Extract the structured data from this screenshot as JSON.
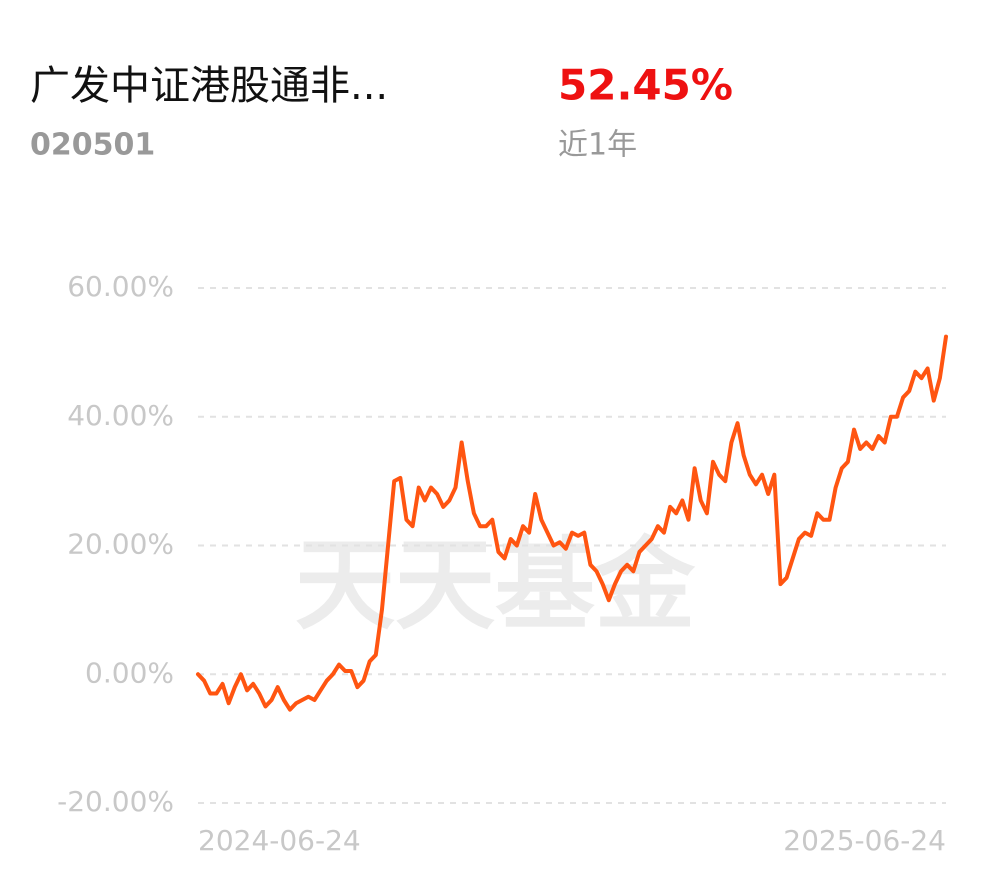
{
  "header": {
    "title": "广发中证港股通非...",
    "code": "020501",
    "return": "52.45%",
    "period": "近1年"
  },
  "watermark": "天天基金",
  "chart_data": {
    "type": "line",
    "categories": [
      "2024-06-24",
      null,
      null,
      null,
      null,
      null,
      null,
      null,
      null,
      null,
      null,
      null,
      null,
      null,
      null,
      null,
      null,
      null,
      null,
      null,
      null,
      null,
      null,
      null,
      null,
      null,
      null,
      null,
      null,
      null,
      null,
      null,
      null,
      null,
      null,
      null,
      null,
      null,
      null,
      null,
      null,
      null,
      null,
      null,
      null,
      null,
      null,
      null,
      null,
      null,
      null,
      null,
      null,
      null,
      null,
      null,
      null,
      null,
      null,
      null,
      null,
      null,
      null,
      null,
      null,
      null,
      null,
      null,
      null,
      null,
      null,
      null,
      null,
      null,
      null,
      null,
      null,
      null,
      null,
      null,
      null,
      null,
      null,
      null,
      null,
      null,
      null,
      null,
      null,
      null,
      null,
      null,
      null,
      null,
      null,
      null,
      null,
      null,
      null,
      null,
      null,
      null,
      null,
      null,
      null,
      null,
      null,
      null,
      null,
      null,
      null,
      null,
      null,
      null,
      null,
      null,
      null,
      null,
      null,
      null,
      null,
      null,
      "2025-06-24"
    ],
    "series": [
      {
        "color": "#ff5511",
        "values": [
          0,
          -1,
          -3,
          -3,
          -1.5,
          -4.5,
          -2,
          0,
          -2.5,
          -1.5,
          -3,
          -5,
          -4,
          -2,
          -4,
          -5.5,
          -4.5,
          -4,
          -3.5,
          -4,
          -2.5,
          -1,
          0,
          1.5,
          0.5,
          0.5,
          -2,
          -1,
          2,
          3,
          10,
          20,
          30,
          30.5,
          24,
          23,
          29,
          27,
          29,
          28,
          26,
          27,
          29,
          36,
          30,
          25,
          23,
          23,
          24,
          19,
          18,
          21,
          20,
          23,
          22,
          28,
          24,
          22,
          20,
          20.5,
          19.5,
          22,
          21.5,
          22,
          17,
          16,
          14,
          11.5,
          14,
          16,
          17,
          16,
          19,
          20,
          21,
          23,
          22,
          26,
          25,
          27,
          24,
          32,
          27,
          25,
          33,
          31,
          30,
          36,
          39,
          34,
          31,
          29.5,
          31,
          28,
          31,
          14,
          15,
          18,
          21,
          22,
          21.5,
          25,
          24,
          24,
          29,
          32,
          33,
          38,
          35,
          36,
          35,
          37,
          36,
          40,
          40,
          43,
          44,
          47,
          46,
          47.5,
          42.5,
          46,
          52.45
        ]
      }
    ],
    "ylim": [
      -20,
      60
    ],
    "yticks": [
      {
        "value": -20,
        "label": "-20.00%"
      },
      {
        "value": 0,
        "label": "0.00%"
      },
      {
        "value": 20,
        "label": "20.00%"
      },
      {
        "value": 40,
        "label": "40.00%"
      },
      {
        "value": 60,
        "label": "60.00%"
      }
    ],
    "grid": true
  }
}
